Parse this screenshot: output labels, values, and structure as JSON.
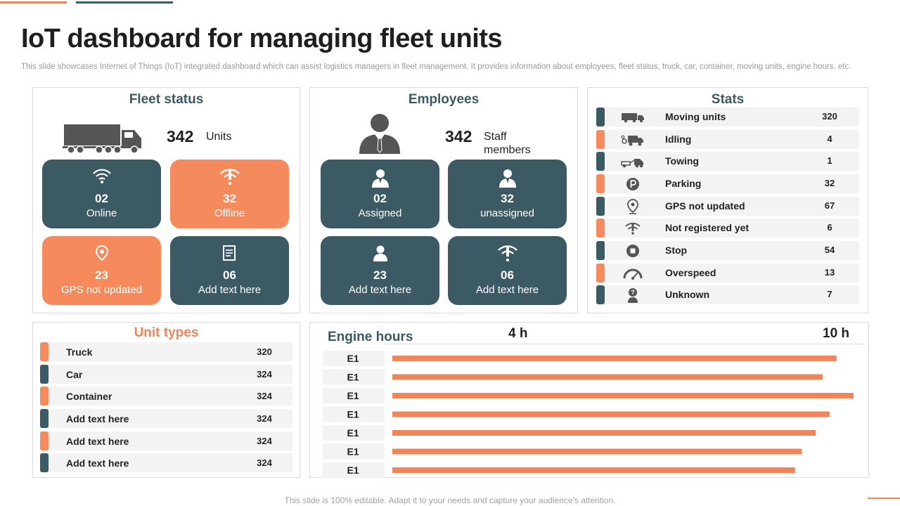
{
  "page": {
    "title": "IoT dashboard for managing fleet units",
    "subtitle": "This slide showcases Internet of Things (IoT) integrated dashboard which can assist logistics managers in fleet management. It provides information about employees, fleet status, truck, car, container, moving units, engine hours, etc.",
    "footer": "This slide is 100% editable. Adapt it to your needs and capture your audience's attention."
  },
  "colors": {
    "teal": "#3c5a63",
    "orange": "#f58a5c",
    "row_bg": "#f3f3f3",
    "bar": "#f0855a"
  },
  "fleet": {
    "title": "Fleet status",
    "icon": "truck-icon",
    "count": "342",
    "count_label": "Units",
    "tiles": [
      {
        "icon": "wifi-icon",
        "value": "02",
        "label": "Online",
        "color": "teal"
      },
      {
        "icon": "wifi-off-icon",
        "value": "32",
        "label": "Offline",
        "color": "orange"
      },
      {
        "icon": "location-pin-icon",
        "value": "23",
        "label": "GPS not updated",
        "color": "orange"
      },
      {
        "icon": "document-icon",
        "value": "06",
        "label": "Add text here",
        "color": "teal"
      }
    ]
  },
  "employees": {
    "title": "Employees",
    "icon": "businessman-icon",
    "count": "342",
    "count_label": "Staff members",
    "tiles": [
      {
        "icon": "person-icon",
        "value": "02",
        "label": "Assigned",
        "color": "teal"
      },
      {
        "icon": "person-icon",
        "value": "32",
        "label": "unassigned",
        "color": "teal"
      },
      {
        "icon": "user-icon",
        "value": "23",
        "label": "Add text here",
        "color": "teal"
      },
      {
        "icon": "wifi-off-icon",
        "value": "06",
        "label": "Add text here",
        "color": "teal"
      }
    ]
  },
  "stats": {
    "title": "Stats",
    "rows": [
      {
        "icon": "moving-truck-icon",
        "label": "Moving units",
        "value": "320",
        "color": "teal"
      },
      {
        "icon": "idling-truck-icon",
        "label": "Idling",
        "value": "4",
        "color": "orange"
      },
      {
        "icon": "tow-truck-icon",
        "label": "Towing",
        "value": "1",
        "color": "teal"
      },
      {
        "icon": "parking-icon",
        "label": "Parking",
        "value": "32",
        "color": "orange"
      },
      {
        "icon": "location-pin-icon",
        "label": "GPS not updated",
        "value": "67",
        "color": "teal"
      },
      {
        "icon": "wifi-off-icon",
        "label": "Not registered yet",
        "value": "6",
        "color": "orange"
      },
      {
        "icon": "stop-icon",
        "label": "Stop",
        "value": "54",
        "color": "teal"
      },
      {
        "icon": "speedometer-icon",
        "label": "Overspeed",
        "value": "13",
        "color": "orange"
      },
      {
        "icon": "unknown-user-icon",
        "label": "Unknown",
        "value": "7",
        "color": "teal"
      }
    ]
  },
  "unit_types": {
    "title": "Unit types",
    "rows": [
      {
        "label": "Truck",
        "value": "320",
        "color": "orange"
      },
      {
        "label": "Car",
        "value": "324",
        "color": "teal"
      },
      {
        "label": "Container",
        "value": "324",
        "color": "orange"
      },
      {
        "label": "Add text here",
        "value": "324",
        "color": "teal"
      },
      {
        "label": "Add text here",
        "value": "324",
        "color": "orange"
      },
      {
        "label": "Add text here",
        "value": "324",
        "color": "teal"
      }
    ]
  },
  "engine_hours": {
    "title": "Engine hours",
    "axis_labels": [
      "4 h",
      "10 h"
    ],
    "rows": [
      {
        "label": "E1",
        "value": 0.963
      },
      {
        "label": "E1",
        "value": 0.933
      },
      {
        "label": "E1",
        "value": 1.0
      },
      {
        "label": "E1",
        "value": 0.948
      },
      {
        "label": "E1",
        "value": 0.918
      },
      {
        "label": "E1",
        "value": 0.888
      },
      {
        "label": "E1",
        "value": 0.873
      }
    ]
  }
}
